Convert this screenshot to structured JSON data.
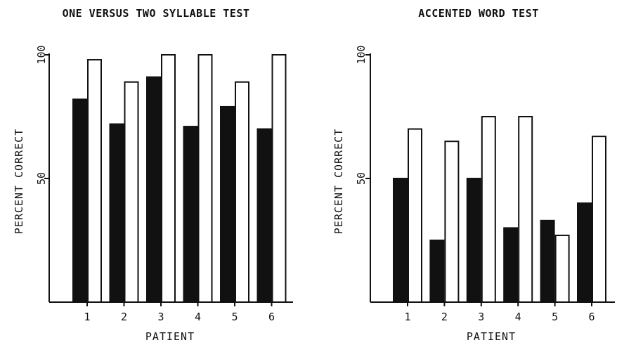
{
  "chart_data": [
    {
      "type": "bar",
      "title": "ONE VERSUS TWO SYLLABLE TEST",
      "xlabel": "PATIENT",
      "ylabel": "PERCENT CORRECT",
      "categories": [
        "1",
        "2",
        "3",
        "4",
        "5",
        "6"
      ],
      "yticks": [
        "50",
        "100"
      ],
      "ylim": [
        0,
        100
      ],
      "series": [
        {
          "fill": "#111111",
          "values": [
            82,
            72,
            91,
            71,
            79,
            70
          ]
        },
        {
          "fill": "#ffffff",
          "values": [
            98,
            89,
            100,
            100,
            89,
            100
          ]
        }
      ],
      "grid": false,
      "legend": "none"
    },
    {
      "type": "bar",
      "title": "ACCENTED WORD TEST",
      "xlabel": "PATIENT",
      "ylabel": "PERCENT CORRECT",
      "categories": [
        "1",
        "2",
        "3",
        "4",
        "5",
        "6"
      ],
      "yticks": [
        "50",
        "100"
      ],
      "ylim": [
        0,
        100
      ],
      "series": [
        {
          "fill": "#111111",
          "values": [
            50,
            25,
            50,
            30,
            33,
            40
          ]
        },
        {
          "fill": "#ffffff",
          "values": [
            70,
            65,
            75,
            75,
            27,
            67
          ]
        }
      ],
      "grid": false,
      "legend": "none"
    }
  ]
}
